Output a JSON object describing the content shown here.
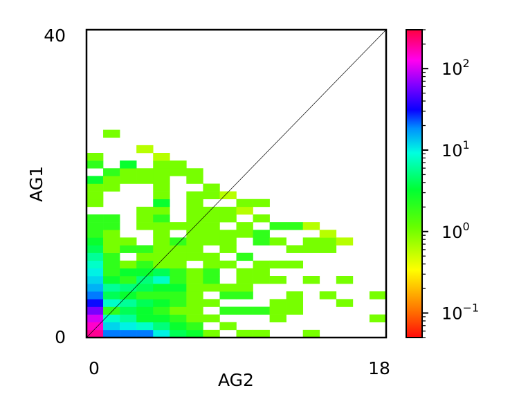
{
  "chart_data": {
    "type": "heatmap",
    "title": "",
    "xlabel": "AG2",
    "ylabel": "AG1",
    "xlim": [
      0,
      18
    ],
    "ylim": [
      0,
      40
    ],
    "x_tick_labels": [
      "0",
      "18"
    ],
    "y_tick_labels": [
      "0",
      "40"
    ],
    "bin_width_x": 1,
    "bin_height_y": 1,
    "diagonal_line": true,
    "color_scale": "log",
    "colormap": "gist_rainbow_r",
    "colorbar": {
      "vmin": 0.05,
      "vmax": 300,
      "major_ticks": [
        {
          "base": "10",
          "exp": "−1",
          "value": 0.1
        },
        {
          "base": "10",
          "exp": "0",
          "value": 1
        },
        {
          "base": "10",
          "exp": "1",
          "value": 10
        },
        {
          "base": "10",
          "exp": "2",
          "value": 100
        }
      ]
    },
    "cells": [
      [
        0,
        0,
        200
      ],
      [
        1,
        0,
        20
      ],
      [
        2,
        0,
        20
      ],
      [
        3,
        0,
        20
      ],
      [
        4,
        0,
        10
      ],
      [
        5,
        0,
        4
      ],
      [
        6,
        0,
        3
      ],
      [
        7,
        0,
        1
      ],
      [
        9,
        0,
        1
      ],
      [
        10,
        0,
        1
      ],
      [
        13,
        0,
        1
      ],
      [
        0,
        1,
        150
      ],
      [
        1,
        1,
        12
      ],
      [
        2,
        1,
        10
      ],
      [
        3,
        1,
        8
      ],
      [
        4,
        1,
        5
      ],
      [
        5,
        1,
        3
      ],
      [
        6,
        1,
        2
      ],
      [
        8,
        1,
        1
      ],
      [
        0,
        2,
        100
      ],
      [
        1,
        2,
        8
      ],
      [
        2,
        2,
        6
      ],
      [
        3,
        2,
        3
      ],
      [
        4,
        2,
        3
      ],
      [
        5,
        2,
        2
      ],
      [
        6,
        2,
        1
      ],
      [
        7,
        2,
        1
      ],
      [
        11,
        2,
        1
      ],
      [
        17,
        2,
        1
      ],
      [
        0,
        3,
        60
      ],
      [
        1,
        3,
        2
      ],
      [
        2,
        3,
        4
      ],
      [
        3,
        3,
        3
      ],
      [
        4,
        3,
        2
      ],
      [
        5,
        3,
        1
      ],
      [
        6,
        3,
        1
      ],
      [
        8,
        3,
        2
      ],
      [
        9,
        3,
        2
      ],
      [
        10,
        3,
        2
      ],
      [
        11,
        3,
        1
      ],
      [
        12,
        3,
        1
      ],
      [
        0,
        4,
        30
      ],
      [
        1,
        4,
        8
      ],
      [
        2,
        4,
        6
      ],
      [
        3,
        4,
        4
      ],
      [
        4,
        4,
        3
      ],
      [
        5,
        4,
        2
      ],
      [
        6,
        4,
        1
      ],
      [
        7,
        4,
        1
      ],
      [
        11,
        4,
        1
      ],
      [
        12,
        4,
        1
      ],
      [
        15,
        4,
        1
      ],
      [
        0,
        5,
        20
      ],
      [
        1,
        5,
        4
      ],
      [
        2,
        5,
        3
      ],
      [
        3,
        5,
        2
      ],
      [
        4,
        5,
        2
      ],
      [
        5,
        5,
        2
      ],
      [
        6,
        5,
        1
      ],
      [
        8,
        5,
        2
      ],
      [
        9,
        5,
        2
      ],
      [
        12,
        5,
        1
      ],
      [
        14,
        5,
        1
      ],
      [
        17,
        5,
        1
      ],
      [
        0,
        6,
        15
      ],
      [
        1,
        6,
        6
      ],
      [
        2,
        6,
        5
      ],
      [
        3,
        6,
        4
      ],
      [
        4,
        6,
        3
      ],
      [
        5,
        6,
        3
      ],
      [
        6,
        6,
        1
      ],
      [
        7,
        6,
        1
      ],
      [
        8,
        6,
        1
      ],
      [
        9,
        6,
        1
      ],
      [
        0,
        7,
        12
      ],
      [
        1,
        7,
        3
      ],
      [
        2,
        7,
        2
      ],
      [
        3,
        7,
        5
      ],
      [
        4,
        7,
        8
      ],
      [
        5,
        7,
        2
      ],
      [
        6,
        7,
        1
      ],
      [
        7,
        7,
        2
      ],
      [
        9,
        7,
        1
      ],
      [
        10,
        7,
        1
      ],
      [
        11,
        7,
        1
      ],
      [
        13,
        7,
        1
      ],
      [
        15,
        7,
        1
      ],
      [
        0,
        8,
        10
      ],
      [
        1,
        8,
        2
      ],
      [
        2,
        8,
        3
      ],
      [
        3,
        8,
        3
      ],
      [
        4,
        8,
        4
      ],
      [
        5,
        8,
        2
      ],
      [
        6,
        8,
        1
      ],
      [
        7,
        8,
        2
      ],
      [
        9,
        8,
        1
      ],
      [
        10,
        8,
        1
      ],
      [
        0,
        9,
        8
      ],
      [
        1,
        9,
        2
      ],
      [
        2,
        9,
        1
      ],
      [
        3,
        9,
        2
      ],
      [
        4,
        9,
        1
      ],
      [
        5,
        9,
        1
      ],
      [
        7,
        9,
        1
      ],
      [
        8,
        9,
        1
      ],
      [
        10,
        9,
        1
      ],
      [
        11,
        9,
        1
      ],
      [
        12,
        9,
        1
      ],
      [
        0,
        10,
        6
      ],
      [
        1,
        10,
        2
      ],
      [
        3,
        10,
        1
      ],
      [
        4,
        10,
        1
      ],
      [
        5,
        10,
        1
      ],
      [
        6,
        10,
        1
      ],
      [
        7,
        10,
        1
      ],
      [
        9,
        10,
        2
      ],
      [
        0,
        11,
        4
      ],
      [
        1,
        11,
        1
      ],
      [
        2,
        11,
        2
      ],
      [
        3,
        11,
        2
      ],
      [
        4,
        11,
        1
      ],
      [
        5,
        11,
        1
      ],
      [
        6,
        11,
        1
      ],
      [
        8,
        11,
        1
      ],
      [
        12,
        11,
        1
      ],
      [
        13,
        11,
        1
      ],
      [
        14,
        11,
        1
      ],
      [
        0,
        12,
        3
      ],
      [
        1,
        12,
        1
      ],
      [
        2,
        12,
        1
      ],
      [
        4,
        12,
        1
      ],
      [
        5,
        12,
        2
      ],
      [
        6,
        12,
        1
      ],
      [
        7,
        12,
        1
      ],
      [
        8,
        12,
        1
      ],
      [
        10,
        12,
        2
      ],
      [
        11,
        12,
        1
      ],
      [
        13,
        12,
        1
      ],
      [
        14,
        12,
        1
      ],
      [
        15,
        12,
        0.6
      ],
      [
        0,
        13,
        2
      ],
      [
        1,
        13,
        1
      ],
      [
        4,
        13,
        1
      ],
      [
        6,
        13,
        1
      ],
      [
        7,
        13,
        1
      ],
      [
        8,
        13,
        1
      ],
      [
        9,
        13,
        1
      ],
      [
        10,
        13,
        2
      ],
      [
        14,
        13,
        0.6
      ],
      [
        0,
        14,
        2
      ],
      [
        1,
        14,
        2
      ],
      [
        3,
        14,
        1
      ],
      [
        4,
        14,
        1
      ],
      [
        5,
        14,
        1
      ],
      [
        6,
        14,
        1
      ],
      [
        7,
        14,
        1
      ],
      [
        9,
        14,
        1
      ],
      [
        11,
        14,
        2
      ],
      [
        12,
        14,
        2
      ],
      [
        13,
        14,
        0.6
      ],
      [
        0,
        15,
        2
      ],
      [
        1,
        15,
        2
      ],
      [
        3,
        15,
        1
      ],
      [
        4,
        15,
        2
      ],
      [
        6,
        15,
        1
      ],
      [
        7,
        15,
        1
      ],
      [
        8,
        15,
        1
      ],
      [
        10,
        15,
        1
      ],
      [
        3,
        16,
        1
      ],
      [
        4,
        16,
        1
      ],
      [
        6,
        16,
        1
      ],
      [
        7,
        16,
        1
      ],
      [
        8,
        16,
        1
      ],
      [
        9,
        16,
        0.6
      ],
      [
        0,
        17,
        1
      ],
      [
        4,
        17,
        3
      ],
      [
        6,
        17,
        1
      ],
      [
        9,
        17,
        1
      ],
      [
        10,
        17,
        1
      ],
      [
        0,
        18,
        1
      ],
      [
        4,
        18,
        1
      ],
      [
        6,
        18,
        1
      ],
      [
        7,
        18,
        1
      ],
      [
        8,
        18,
        0.6
      ],
      [
        0,
        19,
        1
      ],
      [
        1,
        19,
        1
      ],
      [
        4,
        19,
        1
      ],
      [
        7,
        19,
        1
      ],
      [
        0,
        20,
        3
      ],
      [
        1,
        20,
        1
      ],
      [
        2,
        20,
        1
      ],
      [
        3,
        20,
        1
      ],
      [
        4,
        20,
        1
      ],
      [
        6,
        20,
        1
      ],
      [
        1,
        21,
        2
      ],
      [
        2,
        21,
        1
      ],
      [
        3,
        21,
        1
      ],
      [
        4,
        21,
        1
      ],
      [
        5,
        21,
        1
      ],
      [
        6,
        21,
        1
      ],
      [
        0,
        22,
        2
      ],
      [
        2,
        22,
        3
      ],
      [
        4,
        22,
        1
      ],
      [
        5,
        22,
        1
      ],
      [
        0,
        23,
        1
      ],
      [
        4,
        23,
        0.6
      ],
      [
        3,
        24,
        0.6
      ],
      [
        1,
        26,
        1
      ]
    ]
  }
}
